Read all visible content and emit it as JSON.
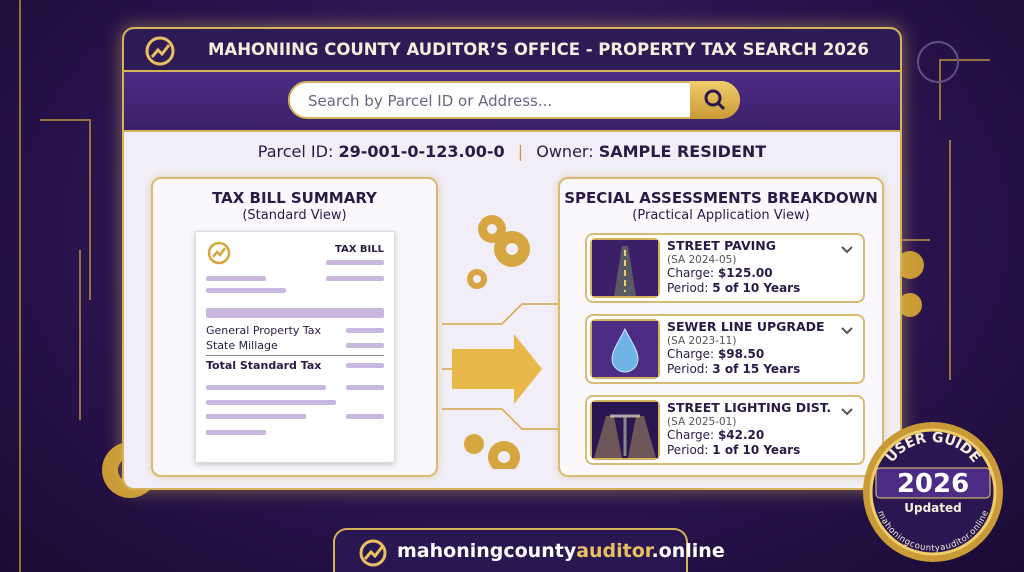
{
  "header": {
    "title": "MAHONIING COUNTY AUDITOR’S OFFICE - PROPERTY TAX SEARCH 2026"
  },
  "search": {
    "placeholder": "Search by Parcel ID or Address..."
  },
  "parcel": {
    "id_label": "Parcel ID:",
    "id": "29-001-0-123.00-0",
    "owner_label": "Owner:",
    "owner": "SAMPLE RESIDENT"
  },
  "summary": {
    "title": "TAX BILL SUMMARY",
    "subtitle": "(Standard View)",
    "bill_title": "TAX BILL",
    "lines": [
      "General Property Tax",
      "State Millage"
    ],
    "total": "Total Standard Tax"
  },
  "assessments": {
    "title": "SPECIAL ASSESSMENTS BREAKDOWN",
    "subtitle": "(Practical Application View)",
    "items": [
      {
        "name": "STREET PAVING",
        "code": "(SA 2024-05)",
        "charge_label": "Charge:",
        "charge": "$125.00",
        "period_label": "Period:",
        "period": "5 of 10 Years"
      },
      {
        "name": "SEWER LINE UPGRADE",
        "code": "(SA 2023-11)",
        "charge_label": "Charge:",
        "charge": "$98.50",
        "period_label": "Period:",
        "period": "3 of 15 Years"
      },
      {
        "name": "STREET LIGHTING DIST.",
        "code": "(SA 2025-01)",
        "charge_label": "Charge:",
        "charge": "$42.20",
        "period_label": "Period:",
        "period": "1 of 10 Years"
      }
    ]
  },
  "badge": {
    "top": "USER GUIDE",
    "year": "2026",
    "status": "Updated",
    "url": "mahoningcountyauditor.online"
  },
  "footer": {
    "parts": [
      "mahoningcounty",
      "auditor",
      ".online"
    ]
  }
}
